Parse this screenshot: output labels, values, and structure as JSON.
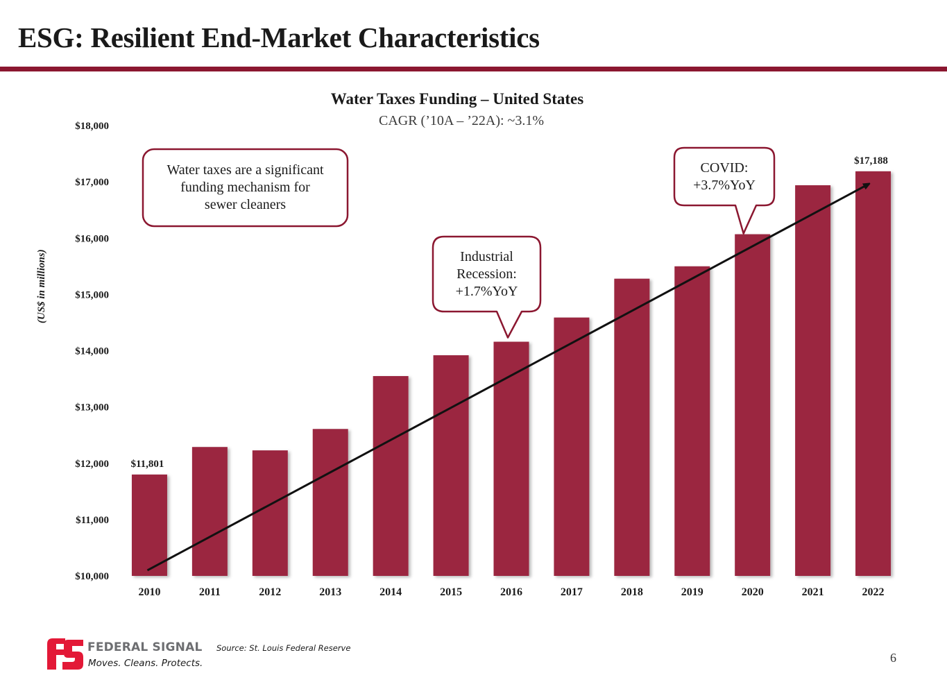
{
  "slide": {
    "title": "ESG: Resilient End-Market Characteristics",
    "page_number": "6",
    "accent_color": "#8b1730"
  },
  "chart_data": {
    "type": "bar",
    "title": "Water Taxes Funding – United States",
    "subtitle": "CAGR (’10A – ’22A): ~3.1%",
    "xlabel": "",
    "ylabel": "(US$ in millions)",
    "ylim": [
      10000,
      18000
    ],
    "yticks": [
      10000,
      11000,
      12000,
      13000,
      14000,
      15000,
      16000,
      17000,
      18000
    ],
    "ytick_labels": [
      "$10,000",
      "$11,000",
      "$12,000",
      "$13,000",
      "$14,000",
      "$15,000",
      "$16,000",
      "$17,000",
      "$18,000"
    ],
    "categories": [
      "2010",
      "2011",
      "2012",
      "2013",
      "2014",
      "2015",
      "2016",
      "2017",
      "2018",
      "2019",
      "2020",
      "2021",
      "2022"
    ],
    "values": [
      11801,
      12290,
      12230,
      12610,
      13550,
      13920,
      14160,
      14590,
      15280,
      15500,
      16070,
      16940,
      17188
    ],
    "data_labels": [
      {
        "category": "2010",
        "text": "$11,801"
      },
      {
        "category": "2022",
        "text": "$17,188"
      }
    ],
    "bar_color": "#9b2740",
    "grid": false,
    "legend": "none",
    "trend_arrow": {
      "from": {
        "category": "2010",
        "value": 10100
      },
      "to": {
        "category": "2022",
        "value": 17050
      },
      "color": "#111111"
    },
    "annotations": [
      {
        "id": "funding-note",
        "lines": [
          "Water taxes are a significant",
          "funding mechanism for",
          "sewer cleaners"
        ],
        "pointer": false
      },
      {
        "id": "industrial-recession",
        "lines": [
          "Industrial",
          "Recession:",
          "+1.7%YoY"
        ],
        "pointer": true,
        "points_to": "2016"
      },
      {
        "id": "covid",
        "lines": [
          "COVID:",
          "+3.7%YoY"
        ],
        "pointer": true,
        "points_to": "2020"
      }
    ]
  },
  "footer": {
    "brand": "FEDERAL SIGNAL",
    "tagline": "Moves. Cleans. Protects.",
    "source": "Source: St. Louis Federal Reserve",
    "logo_color": "#e31937",
    "brand_color": "#6d6e71"
  }
}
